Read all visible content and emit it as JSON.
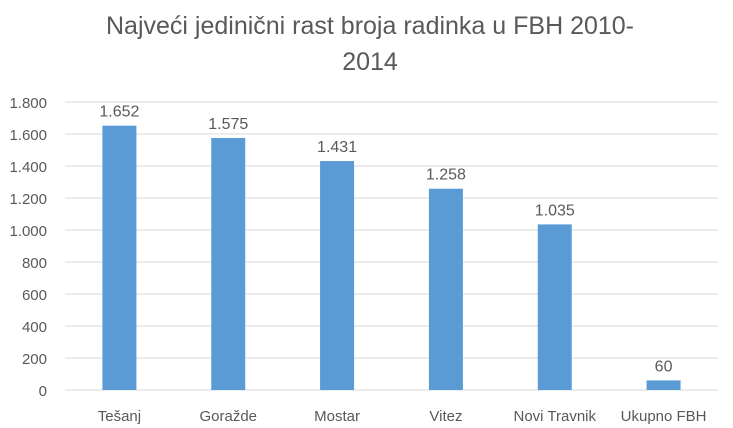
{
  "chart_data": {
    "type": "bar",
    "title": "Najveći jedinični rast broja radinka u FBH 2010-\n2014",
    "xlabel": "",
    "ylabel": "",
    "categories": [
      "Tešanj",
      "Goražde",
      "Mostar",
      "Vitez",
      "Novi Travnik",
      "Ukupno FBH"
    ],
    "values": [
      1652,
      1575,
      1431,
      1258,
      1035,
      60
    ],
    "value_labels": [
      "1.652",
      "1.575",
      "1.431",
      "1.258",
      "1.035",
      "60"
    ],
    "ylim": [
      0,
      1800
    ],
    "y_ticks": [
      0,
      200,
      400,
      600,
      800,
      1000,
      1200,
      1400,
      1600,
      1800
    ],
    "y_tick_labels": [
      "0",
      "200",
      "400",
      "600",
      "800",
      "1.000",
      "1.200",
      "1.400",
      "1.600",
      "1.800"
    ],
    "grid": true,
    "legend": "none",
    "colors": {
      "bar": "#5b9bd5",
      "grid": "#d9d9d9",
      "text": "#595959",
      "title": "#595959"
    }
  }
}
